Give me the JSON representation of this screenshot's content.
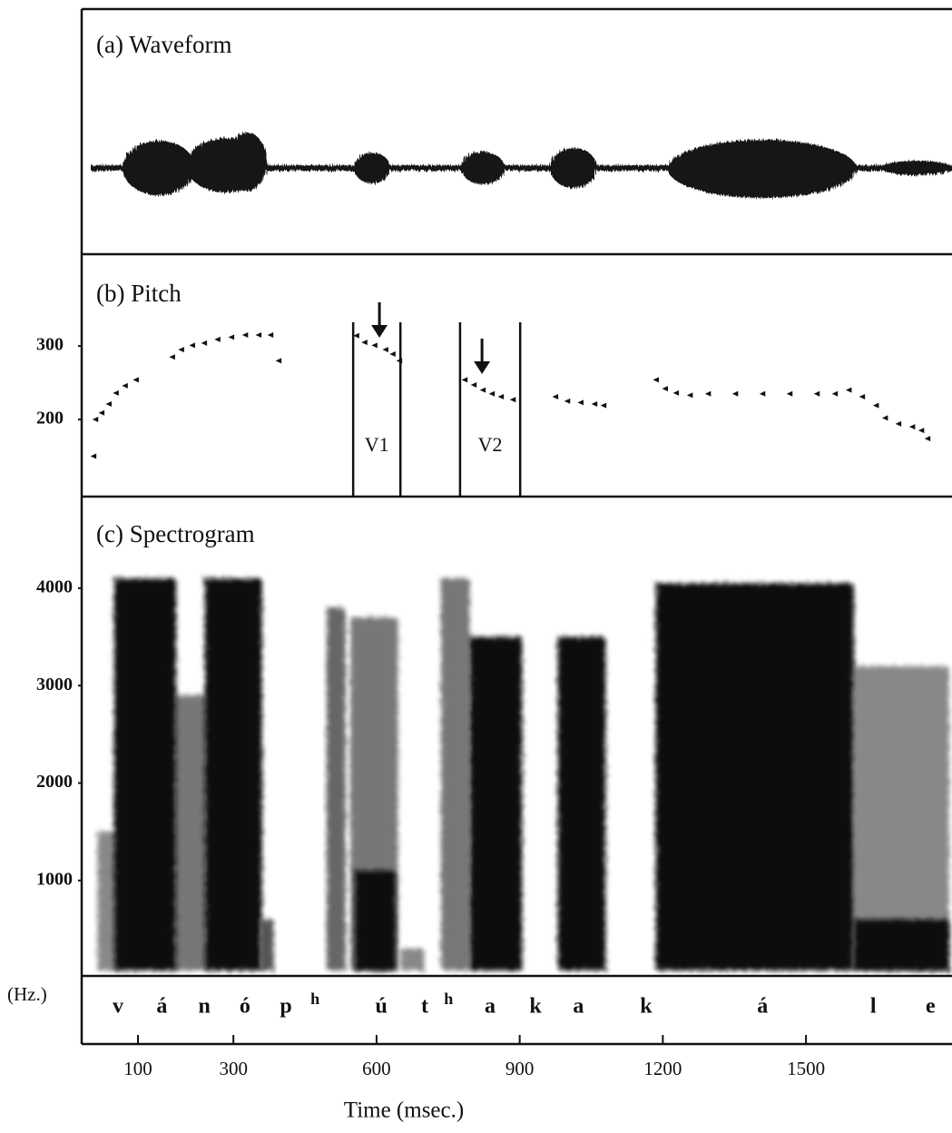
{
  "chart_data": [
    {
      "type": "waveform",
      "title": "(a)  Waveform"
    },
    {
      "type": "scatter",
      "title": "(b)  Pitch",
      "x": [
        7,
        11,
        24,
        39,
        54,
        73,
        96,
        172,
        191,
        214,
        239,
        267,
        296,
        325,
        353,
        378,
        395,
        558,
        575,
        596,
        619,
        634,
        648,
        785,
        804,
        823,
        842,
        861,
        886,
        975,
        1000,
        1028,
        1057,
        1076,
        1186,
        1205,
        1228,
        1257,
        1295,
        1352,
        1409,
        1466,
        1523,
        1561,
        1590,
        1618,
        1647,
        1666,
        1694,
        1723,
        1742,
        1755
      ],
      "values": [
        150,
        200,
        209,
        221,
        236,
        246,
        254,
        285,
        295,
        301,
        304,
        309,
        312,
        315,
        315,
        315,
        280,
        314,
        305,
        301,
        295,
        289,
        280,
        254,
        247,
        240,
        235,
        231,
        227,
        231,
        225,
        223,
        221,
        219,
        254,
        242,
        236,
        233,
        235,
        235,
        235,
        235,
        235,
        235,
        240,
        231,
        219,
        202,
        194,
        190,
        185,
        174
      ],
      "xlim": [
        -18,
        1806
      ],
      "ylim": [
        95,
        425
      ],
      "yticks": [
        200,
        300
      ],
      "regions": [
        {
          "label": "V1",
          "start": 551,
          "end": 650,
          "arrow": 606
        },
        {
          "label": "V2",
          "start": 775,
          "end": 901,
          "arrow": 821
        }
      ]
    },
    {
      "type": "spectrogram",
      "title": "(c)  Spectrogram",
      "y_unit": "(Hz.)",
      "xlabel": "Time (msec.)",
      "xlim": [
        -18,
        1806
      ],
      "ylim": [
        20,
        4940
      ],
      "yticks": [
        1000,
        2000,
        3000,
        4000
      ],
      "xticks": [
        100,
        300,
        600,
        900,
        1200,
        1500
      ],
      "energy": [
        {
          "start": 15,
          "end": 60,
          "top": 1500,
          "color": "#888888"
        },
        {
          "start": 175,
          "end": 245,
          "top": 2900,
          "color": "#777777"
        },
        {
          "start": 495,
          "end": 535,
          "top": 3800,
          "color": "#666666"
        },
        {
          "start": 545,
          "end": 645,
          "top": 3700,
          "color": "#777777"
        },
        {
          "start": 650,
          "end": 700,
          "top": 300,
          "color": "#888888"
        },
        {
          "start": 735,
          "end": 795,
          "top": 4100,
          "color": "#777777"
        },
        {
          "start": 1600,
          "end": 1800,
          "top": 3200,
          "color": "#888888"
        },
        {
          "start": 50,
          "end": 180,
          "top": 4100,
          "color": "#111111"
        },
        {
          "start": 240,
          "end": 360,
          "top": 4100,
          "color": "#111111"
        },
        {
          "start": 355,
          "end": 385,
          "top": 600,
          "color": "#555555"
        },
        {
          "start": 555,
          "end": 640,
          "top": 1100,
          "color": "#111111"
        },
        {
          "start": 795,
          "end": 905,
          "top": 3500,
          "color": "#111111"
        },
        {
          "start": 980,
          "end": 1080,
          "top": 3500,
          "color": "#111111"
        },
        {
          "start": 1185,
          "end": 1600,
          "top": 4050,
          "color": "#111111"
        },
        {
          "start": 1600,
          "end": 1800,
          "top": 600,
          "color": "#111111"
        }
      ],
      "segments": [
        {
          "label": "v",
          "time": 58
        },
        {
          "label": "á",
          "time": 150
        },
        {
          "label": "n",
          "time": 239
        },
        {
          "label": "ó",
          "time": 324
        },
        {
          "label": "p",
          "time": 410
        },
        {
          "label": "h",
          "time": 471,
          "superscript": true
        },
        {
          "label": "ú",
          "time": 610
        },
        {
          "label": "t",
          "time": 701
        },
        {
          "label": "h",
          "time": 751,
          "superscript": true
        },
        {
          "label": "a",
          "time": 838
        },
        {
          "label": "k",
          "time": 933
        },
        {
          "label": "a",
          "time": 1023
        },
        {
          "label": "k",
          "time": 1165
        },
        {
          "label": "á",
          "time": 1409
        },
        {
          "label": "l",
          "time": 1641
        },
        {
          "label": "e",
          "time": 1761
        }
      ]
    }
  ]
}
